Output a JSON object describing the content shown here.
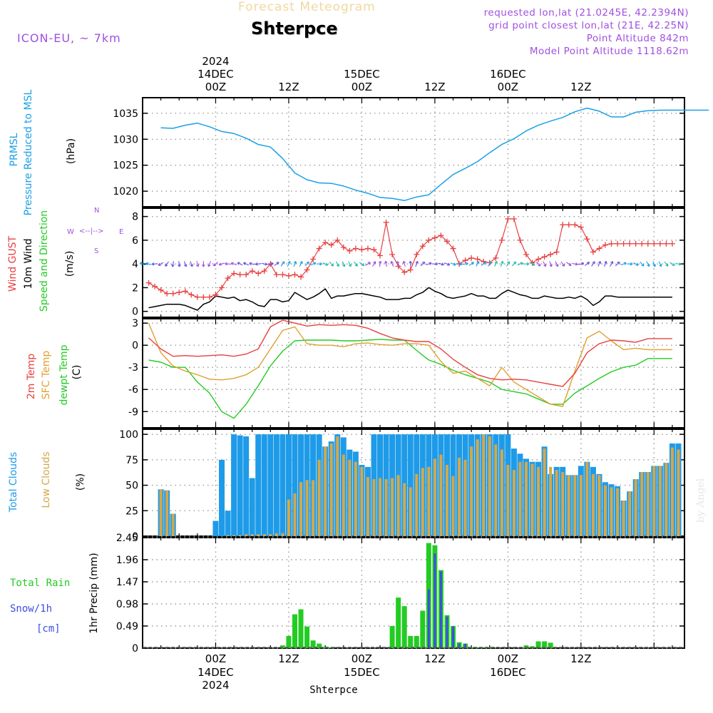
{
  "header": {
    "title": "Forecast Meteogram",
    "location": "Shterpce",
    "model": "ICON-EU, ~ 7km",
    "requested": "requested lon,lat (21.0245E, 42.2394N)",
    "grid_point": "grid point closest lon,lat (21E, 42.25N)",
    "point_altitude": "Point Altitude 842m",
    "model_altitude": "Model Point Altitude 1118.62m",
    "credit": "by Angel"
  },
  "time_axis": {
    "top_year": "2024",
    "day_labels": [
      [
        "14DEC",
        "00Z"
      ],
      [
        "15DEC",
        "00Z"
      ],
      [
        "16DEC",
        "00Z"
      ]
    ],
    "tick_labels": [
      "00Z",
      "12Z",
      "00Z",
      "12Z",
      "00Z",
      "12Z"
    ],
    "bottom_dates": [
      "14DEC",
      "15DEC",
      "16DEC"
    ],
    "bottom_year": "2024",
    "footer_location": "Shterpce"
  },
  "colors": {
    "pressure": "#1aa0e6",
    "gust": "#e84040",
    "wind": "#000000",
    "green": "#22cc22",
    "temp2m": "#e84040",
    "sfc": "#e0a030",
    "dew": "#22cc22",
    "total_clouds": "#1e9be8",
    "low_clouds": "#d4a84a",
    "rain": "#22cc22",
    "snow": "#3a4fe0",
    "purple": "#a050e0",
    "gold": "#f0d8a0"
  },
  "chart_data": [
    {
      "type": "line",
      "panel": "pressure",
      "ylabel_lines": [
        "PRMSL",
        "Pressure Reduced to MSL"
      ],
      "unit": "(hPa)",
      "ylim": [
        1017,
        1038
      ],
      "yticks": [
        1020,
        1025,
        1030,
        1035
      ],
      "x_hours": [
        -9,
        -7,
        -5,
        -3,
        -1,
        1,
        3,
        5,
        7,
        9,
        11,
        13,
        15,
        17,
        19,
        21,
        23,
        25,
        27,
        29,
        31,
        33,
        35,
        37,
        39,
        41,
        43,
        45,
        47,
        49,
        51,
        53,
        55,
        57,
        59,
        61,
        63,
        65,
        67,
        69,
        71,
        73,
        75,
        77,
        79,
        81
      ],
      "series": [
        {
          "name": "PRMSL",
          "values": [
            1032.2,
            1032.1,
            1032.7,
            1033.1,
            1032.4,
            1031.5,
            1031.1,
            1030.2,
            1029.0,
            1028.5,
            1026.3,
            1023.5,
            1022.2,
            1021.6,
            1021.5,
            1021.0,
            1020.2,
            1019.6,
            1018.8,
            1018.6,
            1018.2,
            1018.9,
            1019.3,
            1021.3,
            1023.2,
            1024.4,
            1025.7,
            1027.4,
            1029.0,
            1030.1,
            1031.6,
            1032.7,
            1033.5,
            1034.2,
            1035.3,
            1036.0,
            1035.4,
            1034.3,
            1034.3,
            1035.2,
            1035.5,
            1035.6,
            1035.6,
            1035.6,
            1035.6,
            1035.6
          ]
        }
      ]
    },
    {
      "type": "line",
      "panel": "wind",
      "ylabel_lines": [
        "Wind GUST",
        "10m Wind",
        "Speed and Direction"
      ],
      "unit": "(m/s)",
      "compass": {
        "n": "N",
        "s": "S",
        "w": "W",
        "e": "E"
      },
      "ylim": [
        -0.5,
        8.7
      ],
      "yticks": [
        0,
        2,
        4,
        6,
        8
      ],
      "x_hours": [
        -11,
        -10,
        -9,
        -8,
        -7,
        -6,
        -5,
        -4,
        -3,
        -2,
        -1,
        0,
        1,
        2,
        3,
        4,
        5,
        6,
        7,
        8,
        9,
        10,
        11,
        12,
        13,
        14,
        15,
        16,
        17,
        18,
        19,
        20,
        21,
        22,
        23,
        24,
        25,
        26,
        27,
        28,
        29,
        30,
        31,
        32,
        33,
        34,
        35,
        36,
        37,
        38,
        39,
        40,
        41,
        42,
        43,
        44,
        45,
        46,
        47,
        48,
        49,
        50,
        51,
        52,
        53,
        54,
        55,
        56,
        57,
        58,
        59,
        60,
        61,
        62,
        63,
        64,
        65,
        66,
        67,
        68,
        69,
        70,
        71,
        72,
        73,
        74,
        75
      ],
      "series": [
        {
          "name": "Wind GUST",
          "values": [
            2.4,
            2.1,
            1.8,
            1.5,
            1.5,
            1.6,
            1.7,
            1.4,
            1.2,
            1.2,
            1.2,
            1.4,
            2.0,
            2.8,
            3.2,
            3.1,
            3.1,
            3.4,
            3.2,
            3.4,
            4.0,
            3.1,
            3.1,
            3.0,
            3.1,
            2.9,
            3.5,
            4.4,
            5.3,
            5.8,
            5.6,
            6.0,
            5.4,
            5.1,
            5.3,
            5.2,
            5.3,
            5.2,
            4.7,
            7.5,
            4.8,
            3.8,
            3.3,
            3.5,
            4.8,
            5.5,
            6.0,
            6.2,
            6.4,
            5.9,
            5.3,
            4.0,
            4.3,
            4.5,
            4.4,
            4.2,
            4.1,
            4.5,
            6.0,
            7.8,
            7.8,
            6.0,
            4.8,
            4.1,
            4.4,
            4.6,
            4.8,
            5.0,
            7.3,
            7.3,
            7.3,
            7.1,
            6.1,
            5.0,
            5.3,
            5.6,
            5.7,
            5.7,
            5.7,
            5.7,
            5.7,
            5.7,
            5.7,
            5.7,
            5.7,
            5.7,
            5.7
          ]
        },
        {
          "name": "10m Wind",
          "values": [
            0.3,
            0.4,
            0.5,
            0.6,
            0.6,
            0.6,
            0.5,
            0.3,
            0.1,
            0.6,
            0.8,
            1.3,
            1.2,
            1.1,
            1.2,
            0.9,
            1.0,
            0.8,
            0.5,
            0.4,
            1.0,
            1.0,
            0.8,
            0.9,
            1.6,
            1.3,
            1.0,
            1.2,
            1.5,
            1.9,
            1.1,
            1.3,
            1.3,
            1.4,
            1.5,
            1.5,
            1.4,
            1.3,
            1.2,
            1.0,
            1.0,
            1.0,
            1.1,
            1.1,
            1.4,
            1.6,
            2.0,
            1.7,
            1.5,
            1.2,
            1.1,
            1.2,
            1.3,
            1.5,
            1.3,
            1.3,
            1.1,
            1.1,
            1.5,
            1.8,
            1.6,
            1.4,
            1.3,
            1.1,
            1.1,
            1.3,
            1.2,
            1.1,
            1.1,
            1.2,
            1.1,
            1.3,
            1.0,
            0.5,
            0.8,
            1.3,
            1.3,
            1.2,
            1.2,
            1.2,
            1.2,
            1.2,
            1.2,
            1.2,
            1.2,
            1.2,
            1.2
          ]
        }
      ]
    },
    {
      "type": "line",
      "panel": "temperature",
      "ylabel_lines": [
        "2m Temp",
        "SFC Temp",
        "dewpt Temp"
      ],
      "unit": "(C)",
      "ylim": [
        -11.2,
        3.6
      ],
      "yticks": [
        3,
        0,
        -3,
        -6,
        -9
      ],
      "x_hours": [
        -11,
        -9,
        -7,
        -5,
        -3,
        -1,
        1,
        3,
        5,
        7,
        9,
        11,
        13,
        15,
        17,
        19,
        21,
        23,
        25,
        27,
        29,
        31,
        33,
        35,
        37,
        39,
        41,
        43,
        45,
        47,
        49,
        51,
        53,
        55,
        57,
        59,
        61,
        63,
        65,
        67,
        69,
        71,
        73,
        75
      ],
      "series": [
        {
          "name": "2m Temp",
          "values": [
            1.0,
            -0.5,
            -1.5,
            -1.4,
            -1.5,
            -1.4,
            -1.3,
            -1.5,
            -1.2,
            -0.5,
            2.5,
            3.4,
            3.0,
            2.6,
            2.8,
            2.7,
            2.8,
            2.7,
            2.3,
            1.6,
            1.0,
            0.7,
            0.5,
            0.5,
            -0.5,
            -1.9,
            -3.0,
            -4.0,
            -4.5,
            -4.7,
            -4.6,
            -4.7,
            -5.0,
            -5.3,
            -5.6,
            -3.8,
            -1.0,
            0.2,
            0.7,
            0.6,
            0.4,
            0.9,
            0.9,
            0.9
          ]
        },
        {
          "name": "SFC Temp",
          "values": [
            3.0,
            -1.0,
            -2.8,
            -3.5,
            -4.0,
            -4.6,
            -4.7,
            -4.5,
            -4.0,
            -3.0,
            -0.5,
            2.0,
            2.5,
            0.2,
            0.0,
            0.0,
            -0.2,
            0.2,
            0.3,
            0.1,
            0.0,
            0.2,
            0.2,
            0.0,
            -2.2,
            -3.8,
            -3.5,
            -4.5,
            -5.5,
            -3.0,
            -5.0,
            -6.0,
            -7.0,
            -8.0,
            -8.3,
            -3.5,
            1.0,
            1.9,
            0.6,
            -0.6,
            -0.4,
            -0.6,
            -0.6,
            -0.6
          ]
        },
        {
          "name": "dewpt Temp",
          "values": [
            -2.0,
            -2.3,
            -3.0,
            -3.0,
            -5.0,
            -6.5,
            -9.0,
            -9.9,
            -8.0,
            -5.5,
            -2.8,
            -0.8,
            0.6,
            0.7,
            0.7,
            0.7,
            0.6,
            0.6,
            0.7,
            0.8,
            0.7,
            0.7,
            -0.7,
            -2.0,
            -2.6,
            -3.4,
            -4.0,
            -4.5,
            -5.0,
            -6.0,
            -6.3,
            -6.6,
            -7.3,
            -8.0,
            -8.0,
            -6.5,
            -5.5,
            -4.5,
            -3.6,
            -3.0,
            -2.7,
            -1.8,
            -1.8,
            -1.8
          ]
        }
      ]
    },
    {
      "type": "bar",
      "panel": "clouds",
      "ylabel_lines": [
        "Total Clouds",
        "Low Clouds"
      ],
      "unit": "(%)",
      "ylim": [
        0,
        105
      ],
      "yticks": [
        0,
        25,
        50,
        75,
        100
      ],
      "x_hours": [
        -9,
        -8,
        -7,
        -6,
        -5,
        -4,
        -3,
        -2,
        -1,
        0,
        1,
        2,
        3,
        4,
        5,
        6,
        7,
        8,
        9,
        10,
        11,
        12,
        13,
        14,
        15,
        16,
        17,
        18,
        19,
        20,
        21,
        22,
        23,
        24,
        25,
        26,
        27,
        28,
        29,
        30,
        31,
        32,
        33,
        34,
        35,
        36,
        37,
        38,
        39,
        40,
        41,
        42,
        43,
        44,
        45,
        46,
        47,
        48,
        49,
        50,
        51,
        52,
        53,
        54,
        55,
        56,
        57,
        58,
        59,
        60,
        61,
        62,
        63,
        64,
        65,
        66,
        67,
        68,
        69,
        70,
        71,
        72,
        73,
        74,
        75,
        76
      ],
      "series": [
        {
          "name": "Total Clouds",
          "values": [
            46,
            45,
            22,
            0,
            0,
            0,
            0,
            0,
            0,
            15,
            75,
            25,
            100,
            99,
            98,
            57,
            100,
            100,
            100,
            100,
            100,
            100,
            100,
            100,
            100,
            100,
            100,
            88,
            93,
            100,
            97,
            85,
            83,
            70,
            68,
            100,
            100,
            100,
            100,
            100,
            100,
            100,
            100,
            100,
            100,
            100,
            100,
            100,
            100,
            100,
            100,
            100,
            100,
            100,
            100,
            100,
            100,
            100,
            86,
            81,
            76,
            73,
            73,
            88,
            61,
            68,
            68,
            60,
            60,
            69,
            73,
            68,
            61,
            53,
            51,
            49,
            35,
            44,
            56,
            63,
            63,
            69,
            69,
            72,
            91,
            91
          ]
        },
        {
          "name": "Low Clouds",
          "values": [
            46,
            45,
            22,
            0,
            0,
            0,
            0,
            0,
            0,
            0,
            0,
            1,
            1,
            1,
            2,
            2,
            2,
            2,
            2,
            3,
            3,
            36,
            42,
            53,
            55,
            55,
            75,
            88,
            91,
            98,
            80,
            75,
            73,
            68,
            58,
            56,
            57,
            56,
            57,
            60,
            52,
            48,
            61,
            67,
            68,
            76,
            80,
            70,
            59,
            77,
            75,
            88,
            95,
            100,
            98,
            90,
            85,
            70,
            65,
            73,
            73,
            71,
            68,
            86,
            68,
            65,
            63,
            60,
            60,
            60,
            73,
            61,
            60,
            50,
            48,
            47,
            35,
            44,
            56,
            63,
            63,
            69,
            69,
            72,
            87,
            85
          ]
        }
      ]
    },
    {
      "type": "bar",
      "panel": "precipitation",
      "legend_lines": [
        "Total  Rain",
        "Snow/1h",
        "[cm]"
      ],
      "unit": "1hr Precip (mm)",
      "ylim": [
        0,
        2.45
      ],
      "yticks": [
        0,
        0.49,
        0.98,
        1.47,
        1.96,
        2.45
      ],
      "ytick_labels": [
        "0",
        "0.49",
        "0.98",
        "1.47",
        "1.96",
        "2.45"
      ],
      "x_hours": [
        11,
        12,
        13,
        14,
        15,
        16,
        17,
        18,
        19,
        29,
        30,
        31,
        32,
        33,
        34,
        35,
        36,
        37,
        38,
        39,
        40,
        41,
        42,
        43,
        44,
        45,
        51,
        52,
        53,
        54,
        55
      ],
      "series": [
        {
          "name": "Total Rain",
          "values": [
            0.06,
            0.27,
            0.75,
            0.86,
            0.48,
            0.17,
            0.1,
            0.03,
            0.02,
            0.49,
            1.12,
            0.93,
            0.27,
            0.27,
            0.83,
            2.33,
            2.28,
            1.73,
            0.73,
            0.49,
            0.13,
            0.1,
            0.01,
            0.01,
            0.01,
            0.01,
            0.06,
            0.04,
            0.15,
            0.15,
            0.12
          ]
        },
        {
          "name": "Snow/1h",
          "values": [
            0,
            0,
            0,
            0,
            0,
            0,
            0,
            0,
            0,
            0,
            0,
            0,
            0,
            0,
            0,
            1.3,
            2.1,
            1.7,
            0.7,
            0.48,
            0.1,
            0.1,
            0,
            0,
            0,
            0,
            0,
            0,
            0,
            0,
            0
          ]
        }
      ]
    }
  ]
}
